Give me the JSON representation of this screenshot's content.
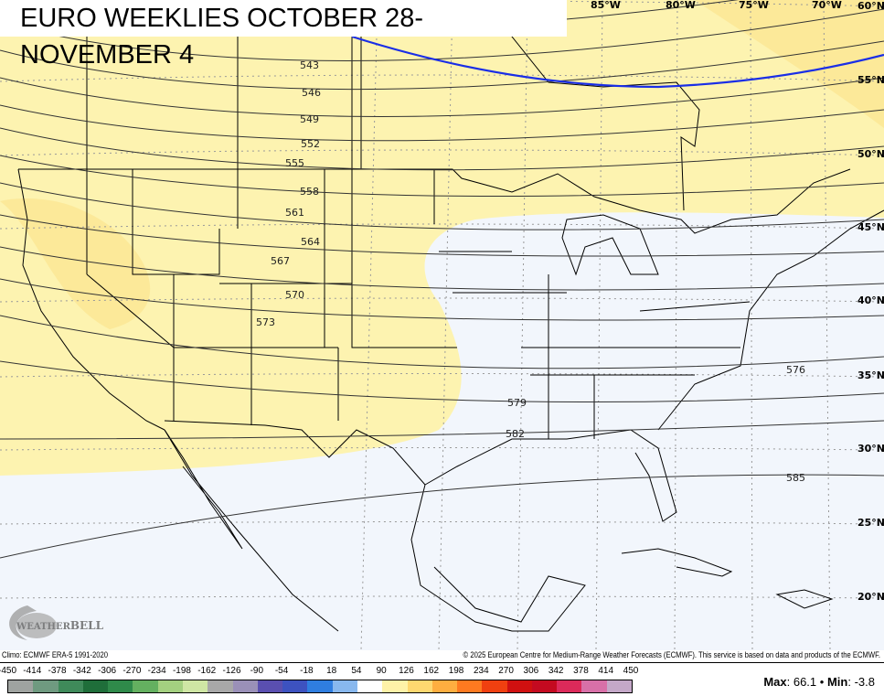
{
  "title": "EURO WEEKLIES OCTOBER 28-NOVEMBER 4",
  "map": {
    "longitude_labels": [
      "85°W",
      "80°W",
      "75°W",
      "70°W"
    ],
    "latitude_labels": [
      "60°N",
      "55°N",
      "50°N",
      "45°N",
      "40°N",
      "35°N",
      "30°N",
      "25°N",
      "20°N"
    ],
    "contour_labels": [
      "543",
      "546",
      "549",
      "552",
      "555",
      "558",
      "561",
      "564",
      "567",
      "570",
      "573",
      "576",
      "579",
      "582",
      "585"
    ],
    "colors": {
      "positive_anomaly": "#fdf3b0",
      "near_zero": "#f2f6fc",
      "highlight_contour": "#1a2ee6"
    },
    "logo_text": "WeatherBELL Analytics LLC"
  },
  "footer": {
    "climo": "Climo: ECMWF ERA-5 1991-2020",
    "copyright": "© 2025 European Centre for Medium-Range Weather Forecasts (ECMWF). This service is based on data and products of the ECMWF.",
    "max_label": "Max",
    "max_value": "66.1",
    "separator": "•",
    "min_label": "Min",
    "min_value": "-3.8"
  },
  "colorbar": {
    "labels": [
      "-450",
      "-414",
      "-378",
      "-342",
      "-306",
      "-270",
      "-234",
      "-198",
      "-162",
      "-126",
      "-90",
      "-54",
      "-18",
      "18",
      "54",
      "90",
      "126",
      "162",
      "198",
      "234",
      "270",
      "306",
      "342",
      "378",
      "414",
      "450"
    ],
    "colors": [
      "#9fa3a0",
      "#6f9a80",
      "#3f8a5a",
      "#1f6e3a",
      "#2f8a4a",
      "#64b060",
      "#a4d080",
      "#cfe6a4",
      "#a8a8a8",
      "#9a90b8",
      "#5a4fb0",
      "#3d52c0",
      "#2f7ee0",
      "#88b8ee",
      "#ffffff",
      "#fff2a8",
      "#ffd870",
      "#ffae40",
      "#ff7a20",
      "#f04010",
      "#d01010",
      "#c40a20",
      "#dc2a5a",
      "#d870a8",
      "#c4a8c8"
    ]
  }
}
